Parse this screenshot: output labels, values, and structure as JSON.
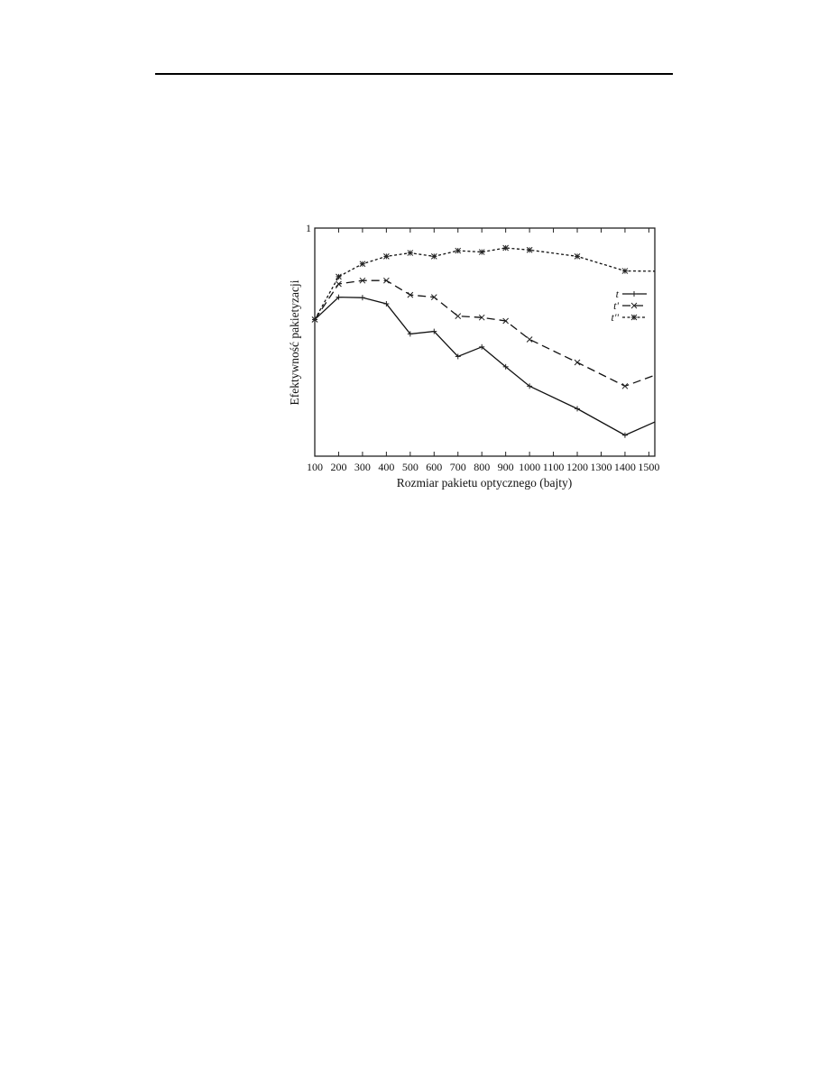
{
  "chart_data": {
    "type": "line",
    "title": "",
    "xlabel": "Rozmiar pakietu optycznego (bajty)",
    "ylabel": "Efektywność pakietyzacji",
    "xlim": [
      100,
      1525
    ],
    "ylim": [
      0,
      1
    ],
    "x_ticks": [
      "100",
      "200",
      "300",
      "400",
      "500",
      "600",
      "700",
      "800",
      "900",
      "1000",
      "1100",
      "1200",
      "1300",
      "1400",
      "1500"
    ],
    "y_ticks": [
      "1"
    ],
    "grid": false,
    "legend_position": "right",
    "series": [
      {
        "name": "t",
        "style": "solid",
        "marker": "plus",
        "x": [
          100,
          200,
          300,
          400,
          500,
          600,
          700,
          800,
          900,
          1000,
          1200,
          1400,
          1525
        ],
        "y": [
          0.599,
          0.697,
          0.695,
          0.668,
          0.536,
          0.547,
          0.437,
          0.479,
          0.392,
          0.307,
          0.208,
          0.092,
          0.15
        ]
      },
      {
        "name": "t'",
        "style": "long-dash",
        "marker": "cross",
        "x": [
          100,
          200,
          300,
          400,
          500,
          600,
          700,
          800,
          900,
          1000,
          1200,
          1400,
          1525
        ],
        "y": [
          0.599,
          0.755,
          0.77,
          0.77,
          0.707,
          0.697,
          0.614,
          0.608,
          0.593,
          0.512,
          0.411,
          0.307,
          0.355
        ]
      },
      {
        "name": "t''",
        "style": "short-dash",
        "marker": "star",
        "x": [
          100,
          200,
          300,
          400,
          500,
          600,
          700,
          800,
          900,
          1000,
          1200,
          1400,
          1525
        ],
        "y": [
          0.599,
          0.787,
          0.843,
          0.876,
          0.891,
          0.876,
          0.901,
          0.895,
          0.913,
          0.904,
          0.876,
          0.812,
          0.811
        ]
      }
    ]
  }
}
